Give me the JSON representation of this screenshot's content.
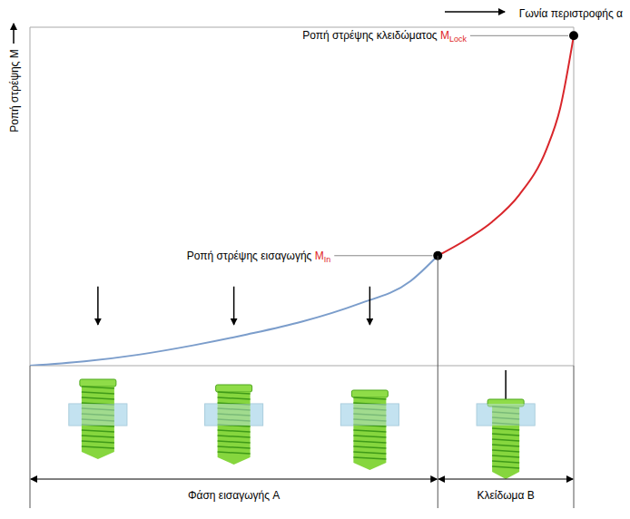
{
  "chart_data": {
    "type": "line",
    "x_label": "Γωνία περιστροφής α",
    "y_label": "Ροπή στρέψης M",
    "x": [
      0,
      10,
      20,
      30,
      40,
      50,
      60,
      70,
      75,
      80,
      85,
      90,
      95,
      97.5,
      100
    ],
    "series": [
      {
        "color": "#7b9dcb",
        "values": [
          0,
          0.05,
          0.13,
          0.24,
          0.37,
          0.52,
          0.72,
          1.0,
          1.3,
          null,
          null,
          null,
          null,
          null,
          null
        ]
      },
      {
        "color": "#d9262b",
        "values": [
          null,
          null,
          null,
          null,
          null,
          null,
          null,
          null,
          1.3,
          1.48,
          1.7,
          2.02,
          2.56,
          3.04,
          3.9
        ]
      }
    ],
    "xlim": [
      0,
      100
    ],
    "ylim": [
      0,
      4
    ],
    "xticks": [
      0,
      100
    ],
    "yticks": [
      0,
      1,
      2,
      3,
      4
    ],
    "grid": true,
    "tick_labels": false,
    "annotations": [
      {
        "label": "Ροπή στρέψης εισαγωγής",
        "symbol": "M",
        "subscript": "In",
        "x": 75,
        "y": 1.3
      },
      {
        "label": "Ροπή στρέψης κλειδώματος",
        "symbol": "M",
        "subscript": "Lock",
        "x": 100,
        "y": 3.9
      }
    ],
    "phases": [
      {
        "label": "Φάση εισαγωγής A",
        "start": 0,
        "end": 75
      },
      {
        "label": "Κλείδωμα B",
        "start": 75,
        "end": 100
      }
    ]
  }
}
